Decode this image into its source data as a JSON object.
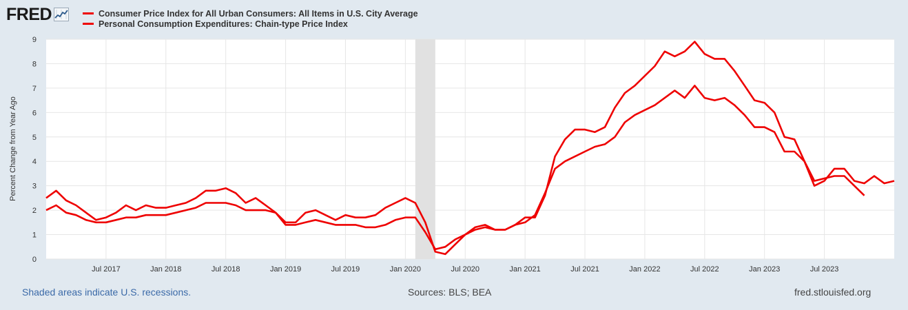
{
  "header": {
    "logo_text": "FRED",
    "logo_icon": "line-chart-icon"
  },
  "footer": {
    "recession_note": "Shaded areas indicate U.S. recessions.",
    "sources": "Sources: BLS; BEA",
    "url": "fred.stlouisfed.org"
  },
  "colors": {
    "series": "#ee0000",
    "plot_bg": "#ffffff",
    "page_bg": "#e1e9f0",
    "recession": "#e1e1e1"
  },
  "chart_data": {
    "type": "line",
    "title": "",
    "xlabel": "",
    "ylabel": "Percent Change from Year Ago",
    "ylim": [
      0,
      9
    ],
    "yticks": [
      0,
      1,
      2,
      3,
      4,
      5,
      6,
      7,
      8,
      9
    ],
    "x_start": "2017-01",
    "x_end": "2024-02",
    "grid": true,
    "legend_position": "top-left",
    "xticks": [
      {
        "label": "Jul 2017",
        "date": "2017-07"
      },
      {
        "label": "Jan 2018",
        "date": "2018-01"
      },
      {
        "label": "Jul 2018",
        "date": "2018-07"
      },
      {
        "label": "Jan 2019",
        "date": "2019-01"
      },
      {
        "label": "Jul 2019",
        "date": "2019-07"
      },
      {
        "label": "Jan 2020",
        "date": "2020-01"
      },
      {
        "label": "Jul 2020",
        "date": "2020-07"
      },
      {
        "label": "Jan 2021",
        "date": "2021-01"
      },
      {
        "label": "Jul 2021",
        "date": "2021-07"
      },
      {
        "label": "Jan 2022",
        "date": "2022-01"
      },
      {
        "label": "Jul 2022",
        "date": "2022-07"
      },
      {
        "label": "Jan 2023",
        "date": "2023-01"
      },
      {
        "label": "Jul 2023",
        "date": "2023-07"
      }
    ],
    "recessions": [
      {
        "start": "2020-02",
        "end": "2020-04"
      }
    ],
    "series": [
      {
        "name": "Consumer Price Index for All Urban Consumers: All Items in U.S. City Average",
        "start": "2017-01",
        "values": [
          2.5,
          2.8,
          2.4,
          2.2,
          1.9,
          1.6,
          1.7,
          1.9,
          2.2,
          2.0,
          2.2,
          2.1,
          2.1,
          2.2,
          2.3,
          2.5,
          2.8,
          2.8,
          2.9,
          2.7,
          2.3,
          2.5,
          2.2,
          1.9,
          1.5,
          1.5,
          1.9,
          2.0,
          1.8,
          1.6,
          1.8,
          1.7,
          1.7,
          1.8,
          2.1,
          2.3,
          2.5,
          2.3,
          1.5,
          0.3,
          0.2,
          0.6,
          1.0,
          1.3,
          1.4,
          1.2,
          1.2,
          1.4,
          1.7,
          1.7,
          2.6,
          4.2,
          4.9,
          5.3,
          5.3,
          5.2,
          5.4,
          6.2,
          6.8,
          7.1,
          7.5,
          7.9,
          8.5,
          8.3,
          8.5,
          8.9,
          8.4,
          8.2,
          8.2,
          7.7,
          7.1,
          6.5,
          6.4,
          6.0,
          5.0,
          4.9,
          4.0,
          3.0,
          3.2,
          3.7,
          3.7,
          3.2,
          3.1,
          3.4,
          3.1,
          3.2
        ]
      },
      {
        "name": "Personal Consumption Expenditures: Chain-type Price Index",
        "start": "2017-01",
        "values": [
          2.0,
          2.2,
          1.9,
          1.8,
          1.6,
          1.5,
          1.5,
          1.6,
          1.7,
          1.7,
          1.8,
          1.8,
          1.8,
          1.9,
          2.0,
          2.1,
          2.3,
          2.3,
          2.3,
          2.2,
          2.0,
          2.0,
          2.0,
          1.9,
          1.4,
          1.4,
          1.5,
          1.6,
          1.5,
          1.4,
          1.4,
          1.4,
          1.3,
          1.3,
          1.4,
          1.6,
          1.7,
          1.7,
          1.1,
          0.4,
          0.5,
          0.8,
          1.0,
          1.2,
          1.3,
          1.2,
          1.2,
          1.4,
          1.5,
          1.8,
          2.7,
          3.7,
          4.0,
          4.2,
          4.4,
          4.6,
          4.7,
          5.0,
          5.6,
          5.9,
          6.1,
          6.3,
          6.6,
          6.9,
          6.6,
          7.1,
          6.6,
          6.5,
          6.6,
          6.3,
          5.9,
          5.4,
          5.4,
          5.2,
          4.4,
          4.4,
          4.0,
          3.2,
          3.3,
          3.4,
          3.4,
          3.0,
          2.6
        ]
      }
    ]
  }
}
